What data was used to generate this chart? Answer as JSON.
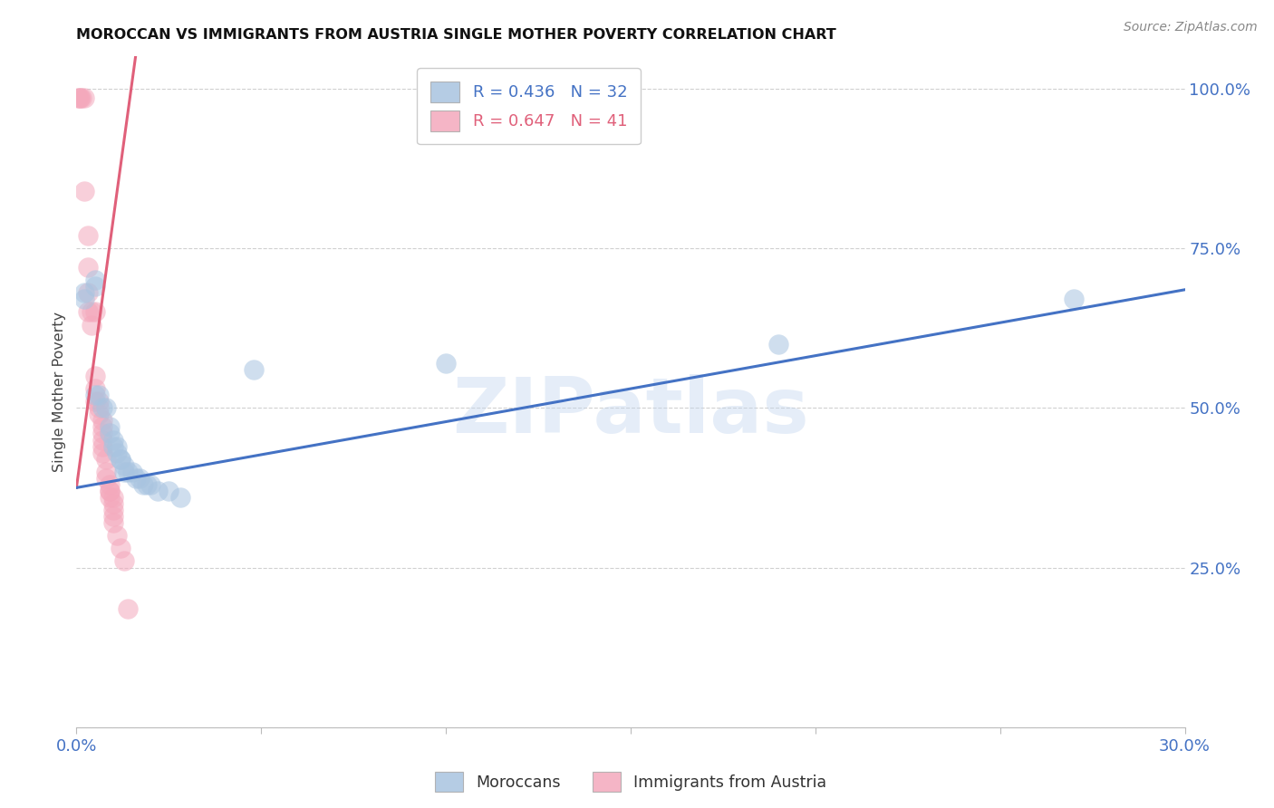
{
  "title": "MOROCCAN VS IMMIGRANTS FROM AUSTRIA SINGLE MOTHER POVERTY CORRELATION CHART",
  "source": "Source: ZipAtlas.com",
  "ylabel": "Single Mother Poverty",
  "xlim": [
    0.0,
    0.3
  ],
  "ylim": [
    0.0,
    1.05
  ],
  "yticks": [
    0.0,
    0.25,
    0.5,
    0.75,
    1.0
  ],
  "ytick_labels": [
    "",
    "25.0%",
    "50.0%",
    "75.0%",
    "100.0%"
  ],
  "xtick_positions": [
    0.0,
    0.05,
    0.1,
    0.15,
    0.2,
    0.25,
    0.3
  ],
  "xtick_labels": [
    "0.0%",
    "",
    "",
    "",
    "",
    "",
    "30.0%"
  ],
  "bg_color": "#ffffff",
  "watermark": "ZIPatlas",
  "legend_blue_R": "R = 0.436",
  "legend_blue_N": "N = 32",
  "legend_pink_R": "R = 0.647",
  "legend_pink_N": "N = 41",
  "legend_label_blue": "Moroccans",
  "legend_label_pink": "Immigrants from Austria",
  "blue_scatter_color": "#a8c4e0",
  "pink_scatter_color": "#f4a8bc",
  "blue_line_color": "#4472c4",
  "pink_line_color": "#e0607a",
  "blue_scatter": [
    [
      0.002,
      0.68
    ],
    [
      0.002,
      0.67
    ],
    [
      0.005,
      0.7
    ],
    [
      0.005,
      0.69
    ],
    [
      0.005,
      0.52
    ],
    [
      0.006,
      0.52
    ],
    [
      0.007,
      0.5
    ],
    [
      0.008,
      0.5
    ],
    [
      0.009,
      0.47
    ],
    [
      0.009,
      0.46
    ],
    [
      0.01,
      0.45
    ],
    [
      0.01,
      0.44
    ],
    [
      0.011,
      0.44
    ],
    [
      0.011,
      0.43
    ],
    [
      0.012,
      0.42
    ],
    [
      0.012,
      0.42
    ],
    [
      0.013,
      0.41
    ],
    [
      0.013,
      0.4
    ],
    [
      0.014,
      0.4
    ],
    [
      0.015,
      0.4
    ],
    [
      0.016,
      0.39
    ],
    [
      0.017,
      0.39
    ],
    [
      0.018,
      0.38
    ],
    [
      0.019,
      0.38
    ],
    [
      0.02,
      0.38
    ],
    [
      0.022,
      0.37
    ],
    [
      0.025,
      0.37
    ],
    [
      0.028,
      0.36
    ],
    [
      0.048,
      0.56
    ],
    [
      0.1,
      0.57
    ],
    [
      0.19,
      0.6
    ],
    [
      0.27,
      0.67
    ]
  ],
  "pink_scatter": [
    [
      0.0005,
      0.985
    ],
    [
      0.001,
      0.985
    ],
    [
      0.001,
      0.985
    ],
    [
      0.0015,
      0.985
    ],
    [
      0.002,
      0.985
    ],
    [
      0.002,
      0.84
    ],
    [
      0.003,
      0.77
    ],
    [
      0.003,
      0.72
    ],
    [
      0.003,
      0.68
    ],
    [
      0.003,
      0.65
    ],
    [
      0.004,
      0.65
    ],
    [
      0.004,
      0.63
    ],
    [
      0.005,
      0.65
    ],
    [
      0.005,
      0.55
    ],
    [
      0.005,
      0.53
    ],
    [
      0.005,
      0.51
    ],
    [
      0.006,
      0.51
    ],
    [
      0.006,
      0.5
    ],
    [
      0.006,
      0.49
    ],
    [
      0.007,
      0.48
    ],
    [
      0.007,
      0.47
    ],
    [
      0.007,
      0.46
    ],
    [
      0.007,
      0.45
    ],
    [
      0.007,
      0.44
    ],
    [
      0.007,
      0.43
    ],
    [
      0.008,
      0.42
    ],
    [
      0.008,
      0.4
    ],
    [
      0.008,
      0.39
    ],
    [
      0.009,
      0.38
    ],
    [
      0.009,
      0.37
    ],
    [
      0.009,
      0.37
    ],
    [
      0.009,
      0.36
    ],
    [
      0.01,
      0.36
    ],
    [
      0.01,
      0.35
    ],
    [
      0.01,
      0.34
    ],
    [
      0.01,
      0.33
    ],
    [
      0.01,
      0.32
    ],
    [
      0.011,
      0.3
    ],
    [
      0.012,
      0.28
    ],
    [
      0.013,
      0.26
    ],
    [
      0.014,
      0.185
    ]
  ],
  "blue_trend_x": [
    0.0,
    0.3
  ],
  "blue_trend_y": [
    0.375,
    0.685
  ],
  "pink_trend_x": [
    0.0,
    0.016
  ],
  "pink_trend_y": [
    0.375,
    1.05
  ],
  "grid_color": "#d0d0d0",
  "axis_tick_color": "#4472c4",
  "title_color": "#111111",
  "source_color": "#888888"
}
